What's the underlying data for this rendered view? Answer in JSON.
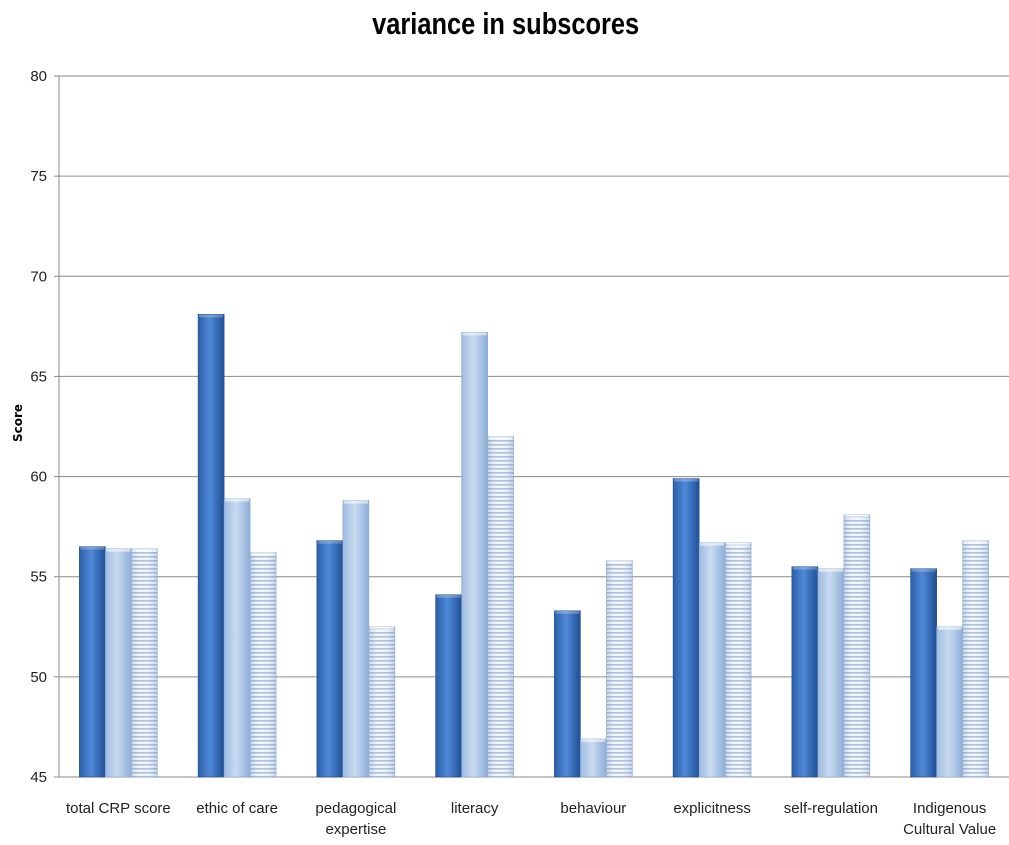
{
  "chart_data": {
    "type": "bar",
    "title": "variance in subscores",
    "xlabel": "",
    "ylabel": "Score",
    "ylim": [
      45,
      80
    ],
    "yticks": [
      45,
      50,
      55,
      60,
      65,
      70,
      75,
      80
    ],
    "grid": true,
    "legend": "none",
    "categories": [
      [
        "total CRP score"
      ],
      [
        "ethic of care"
      ],
      [
        "pedagogical",
        "expertise"
      ],
      [
        "literacy"
      ],
      [
        "behaviour"
      ],
      [
        "explicitness"
      ],
      [
        "self-regulation"
      ],
      [
        "Indigenous",
        "Cultural Value"
      ]
    ],
    "series": [
      {
        "color": "#3a74c8",
        "style": "solid",
        "values": [
          56.5,
          68.1,
          56.8,
          54.1,
          53.3,
          59.9,
          55.5,
          55.4
        ]
      },
      {
        "color": "#b7cde9",
        "style": "solid",
        "values": [
          56.4,
          58.9,
          58.8,
          67.2,
          46.9,
          56.7,
          55.4,
          52.5
        ]
      },
      {
        "color": "#d6e1ee",
        "style": "horizontal-stripes",
        "values": [
          56.4,
          56.2,
          52.5,
          62.0,
          55.8,
          56.7,
          58.1,
          56.8
        ]
      }
    ]
  }
}
